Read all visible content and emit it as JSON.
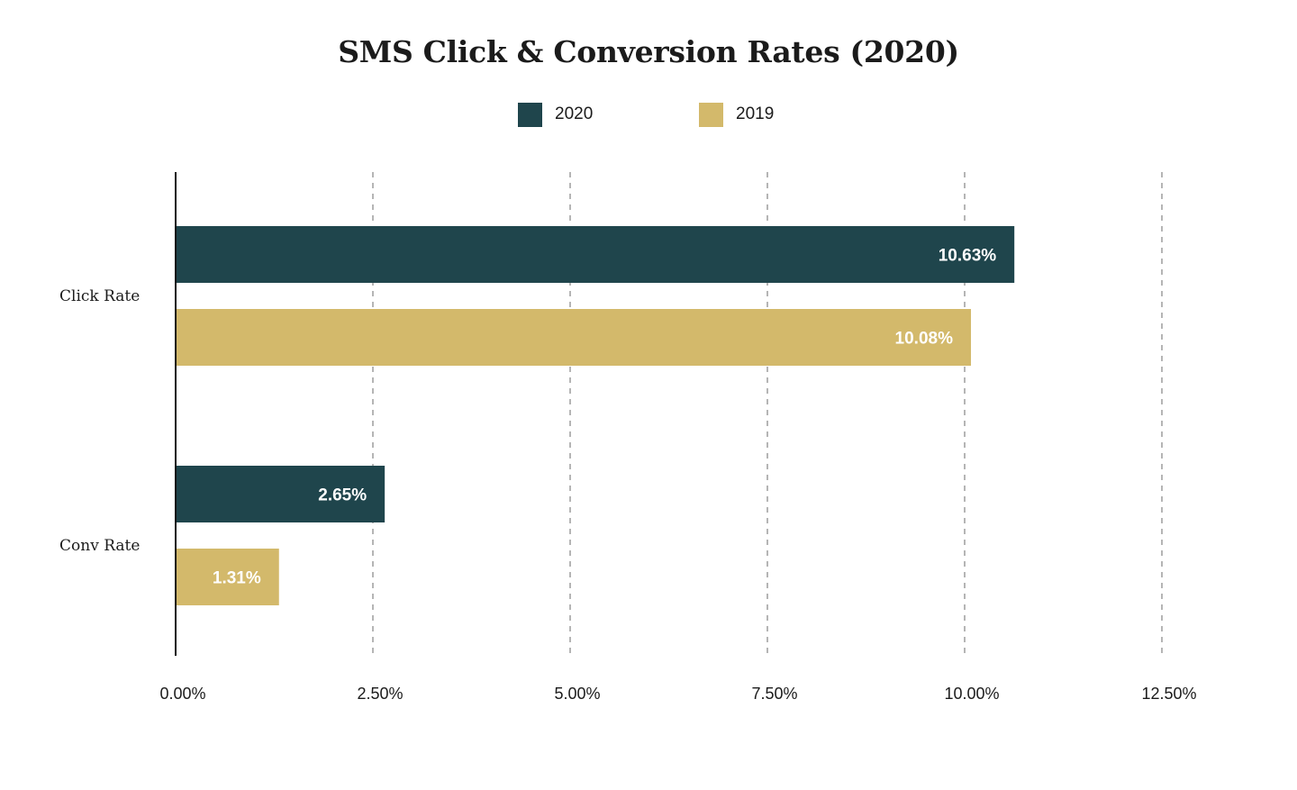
{
  "chart_data": {
    "type": "bar",
    "orientation": "horizontal",
    "title": "SMS Click & Conversion Rates (2020)",
    "categories": [
      "Click Rate",
      "Conv Rate"
    ],
    "series": [
      {
        "name": "2020",
        "values": [
          10.63,
          2.65
        ],
        "labels": [
          "10.63%",
          "2.65%"
        ]
      },
      {
        "name": "2019",
        "values": [
          10.08,
          1.31
        ],
        "labels": [
          "10.08%",
          "1.31%"
        ]
      }
    ],
    "xlim": [
      0,
      12.5
    ],
    "x_ticks": [
      0,
      2.5,
      5,
      7.5,
      10,
      12.5
    ],
    "x_tick_labels": [
      "0.00%",
      "2.50%",
      "5.00%",
      "7.50%",
      "10.00%",
      "12.50%"
    ],
    "grid": "vertical dashed",
    "legend_position": "top-center",
    "colors": {
      "2020": "#1f454c",
      "2019": "#d3b96b"
    }
  }
}
